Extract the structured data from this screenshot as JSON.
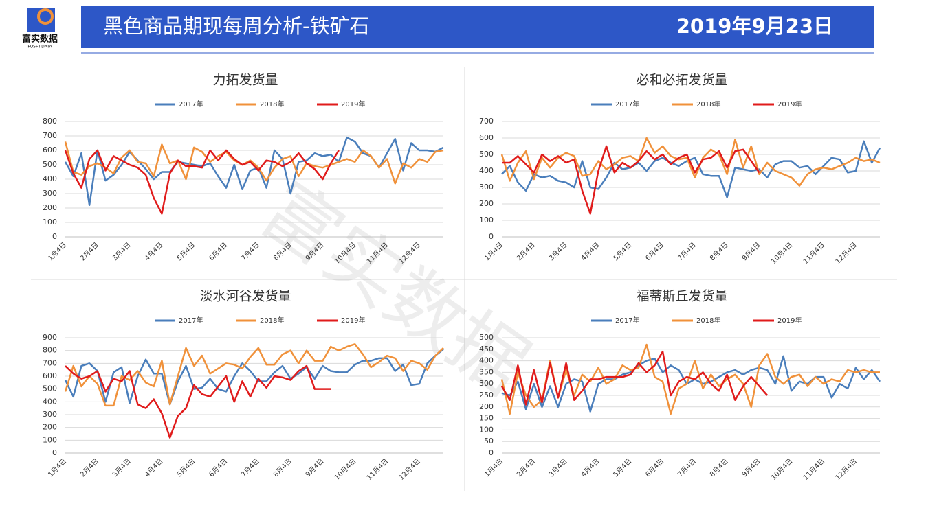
{
  "header": {
    "logo": "富实数据",
    "logo_sub": "FUSHI DATA",
    "title": "黑色商品期现每周分析-铁矿石",
    "date": "2019年9月23日"
  },
  "watermark": "富实数据",
  "chart_data": [
    {
      "type": "line",
      "title": "力拓发货量",
      "categories": [
        "1月4日",
        null,
        null,
        null,
        "2月4日",
        null,
        null,
        null,
        "3月4日",
        null,
        null,
        null,
        "4月4日",
        null,
        null,
        null,
        "5月4日",
        null,
        null,
        null,
        "6月4日",
        null,
        null,
        null,
        "7月4日",
        null,
        null,
        null,
        "8月4日",
        null,
        null,
        null,
        "9月4日",
        null,
        null,
        null,
        "10月4日",
        null,
        null,
        null,
        "11月4日",
        null,
        null,
        null,
        "12月4日",
        null,
        null,
        null
      ],
      "ylim": [
        0,
        800
      ],
      "yticks": [
        0,
        100,
        200,
        300,
        400,
        500,
        600,
        700,
        800
      ],
      "grid": true,
      "series": [
        {
          "name": "2017年",
          "color": "#4a7ebb",
          "values": [
            520,
            420,
            580,
            220,
            600,
            390,
            430,
            500,
            590,
            530,
            470,
            400,
            450,
            450,
            520,
            510,
            500,
            490,
            510,
            420,
            340,
            500,
            330,
            460,
            480,
            340,
            600,
            540,
            300,
            520,
            530,
            580,
            560,
            570,
            520,
            690,
            660,
            580,
            560,
            480,
            580,
            680,
            460,
            650,
            600,
            600,
            590,
            620
          ]
        },
        {
          "name": "2018年",
          "color": "#f0913a",
          "values": [
            660,
            450,
            430,
            490,
            510,
            480,
            440,
            550,
            600,
            520,
            510,
            420,
            640,
            510,
            530,
            400,
            620,
            590,
            520,
            560,
            590,
            530,
            500,
            530,
            480,
            390,
            480,
            540,
            560,
            420,
            510,
            490,
            480,
            500,
            520,
            540,
            520,
            600,
            560,
            480,
            540,
            370,
            510,
            480,
            540,
            520,
            590,
            600
          ]
        },
        {
          "name": "2019年",
          "color": "#e01b1b",
          "values": [
            600,
            440,
            340,
            540,
            600,
            460,
            560,
            530,
            500,
            480,
            430,
            270,
            160,
            440,
            530,
            490,
            490,
            480,
            600,
            530,
            600,
            540,
            500,
            520,
            460,
            530,
            520,
            490,
            520,
            580,
            510,
            470,
            400,
            510,
            600,
            null,
            null,
            null,
            null,
            null,
            null,
            null,
            null,
            null,
            null,
            null,
            null,
            null
          ]
        }
      ]
    },
    {
      "type": "line",
      "title": "必和必拓发货量",
      "categories": [
        "1月4日",
        null,
        null,
        null,
        "2月4日",
        null,
        null,
        null,
        "3月4日",
        null,
        null,
        null,
        "4月4日",
        null,
        null,
        null,
        "5月4日",
        null,
        null,
        null,
        "6月4日",
        null,
        null,
        null,
        "7月4日",
        null,
        null,
        null,
        "8月4日",
        null,
        null,
        null,
        "9月4日",
        null,
        null,
        null,
        "10月4日",
        null,
        null,
        null,
        "11月4日",
        null,
        null,
        null,
        "12月4日",
        null,
        null,
        null
      ],
      "ylim": [
        0,
        700
      ],
      "yticks": [
        0,
        100,
        200,
        300,
        400,
        500,
        600,
        700
      ],
      "grid": true,
      "series": [
        {
          "name": "2017年",
          "color": "#4a7ebb",
          "values": [
            380,
            430,
            330,
            280,
            380,
            360,
            370,
            340,
            330,
            300,
            460,
            300,
            290,
            360,
            450,
            410,
            420,
            450,
            400,
            460,
            480,
            450,
            430,
            460,
            480,
            380,
            370,
            370,
            240,
            420,
            410,
            400,
            410,
            360,
            440,
            460,
            460,
            420,
            430,
            380,
            430,
            480,
            470,
            390,
            400,
            580,
            450,
            540
          ]
        },
        {
          "name": "2018年",
          "color": "#f0913a",
          "values": [
            500,
            340,
            450,
            520,
            350,
            480,
            420,
            480,
            510,
            490,
            370,
            380,
            460,
            410,
            440,
            480,
            490,
            460,
            600,
            510,
            550,
            490,
            470,
            480,
            360,
            480,
            530,
            500,
            380,
            590,
            420,
            550,
            380,
            450,
            400,
            380,
            360,
            310,
            380,
            410,
            420,
            410,
            430,
            450,
            480,
            460,
            470,
            450
          ]
        },
        {
          "name": "2019年",
          "color": "#e01b1b",
          "values": [
            450,
            450,
            490,
            440,
            390,
            500,
            460,
            490,
            450,
            470,
            280,
            140,
            400,
            550,
            390,
            450,
            420,
            460,
            520,
            470,
            500,
            440,
            480,
            500,
            390,
            470,
            480,
            520,
            420,
            520,
            530,
            460,
            390,
            null,
            null,
            null,
            null,
            null,
            null,
            null,
            null,
            null,
            null,
            null,
            null,
            null,
            null,
            null
          ]
        }
      ]
    },
    {
      "type": "line",
      "title": "淡水河谷发货量",
      "categories": [
        "1月4日",
        null,
        null,
        null,
        "2月4日",
        null,
        null,
        null,
        "3月4日",
        null,
        null,
        null,
        "4月4日",
        null,
        null,
        null,
        "5月4日",
        null,
        null,
        null,
        "6月4日",
        null,
        null,
        null,
        "7月4日",
        null,
        null,
        null,
        "8月4日",
        null,
        null,
        null,
        "9月4日",
        null,
        null,
        null,
        "10月4日",
        null,
        null,
        null,
        "11月4日",
        null,
        null,
        null,
        "12月4日",
        null,
        null,
        null
      ],
      "ylim": [
        0,
        900
      ],
      "yticks": [
        0,
        100,
        200,
        300,
        400,
        500,
        600,
        700,
        800,
        900
      ],
      "grid": true,
      "series": [
        {
          "name": "2017年",
          "color": "#4a7ebb",
          "values": [
            570,
            440,
            680,
            700,
            640,
            400,
            630,
            670,
            390,
            600,
            730,
            620,
            620,
            380,
            560,
            680,
            500,
            510,
            580,
            500,
            480,
            600,
            700,
            640,
            560,
            560,
            630,
            680,
            580,
            620,
            670,
            580,
            680,
            640,
            630,
            630,
            690,
            720,
            720,
            740,
            740,
            640,
            690,
            530,
            540,
            700,
            760,
            810
          ]
        },
        {
          "name": "2018年",
          "color": "#f0913a",
          "values": [
            480,
            680,
            520,
            600,
            540,
            370,
            370,
            600,
            570,
            640,
            550,
            520,
            720,
            380,
            600,
            820,
            680,
            760,
            620,
            660,
            700,
            690,
            660,
            750,
            820,
            690,
            690,
            770,
            800,
            700,
            800,
            720,
            720,
            830,
            800,
            830,
            850,
            770,
            670,
            710,
            760,
            740,
            640,
            720,
            700,
            650,
            760,
            820
          ]
        },
        {
          "name": "2019年",
          "color": "#e01b1b",
          "values": [
            680,
            620,
            580,
            600,
            640,
            480,
            580,
            560,
            640,
            380,
            350,
            420,
            310,
            120,
            290,
            350,
            530,
            460,
            440,
            520,
            600,
            400,
            560,
            440,
            580,
            510,
            600,
            590,
            570,
            640,
            680,
            500,
            500,
            500,
            null,
            null,
            null,
            null,
            null,
            null,
            null,
            null,
            null,
            null,
            null,
            null,
            null,
            null
          ]
        }
      ]
    },
    {
      "type": "line",
      "title": "福蒂斯丘发货量",
      "categories": [
        "1月4日",
        null,
        null,
        null,
        "2月4日",
        null,
        null,
        null,
        "3月4日",
        null,
        null,
        null,
        "4月4日",
        null,
        null,
        null,
        "5月4日",
        null,
        null,
        null,
        "6月4日",
        null,
        null,
        null,
        "7月4日",
        null,
        null,
        null,
        "8月4日",
        null,
        null,
        null,
        "9月4日",
        null,
        null,
        null,
        "10月4日",
        null,
        null,
        null,
        "11月4日",
        null,
        null,
        null,
        "12月4日",
        null,
        null,
        null
      ],
      "ylim": [
        0,
        500
      ],
      "yticks": [
        0,
        50,
        100,
        150,
        200,
        250,
        300,
        350,
        400,
        450,
        500
      ],
      "grid": true,
      "series": [
        {
          "name": "2017年",
          "color": "#4a7ebb",
          "values": [
            260,
            250,
            310,
            190,
            300,
            200,
            290,
            200,
            300,
            320,
            310,
            180,
            300,
            320,
            320,
            340,
            350,
            380,
            400,
            410,
            350,
            380,
            360,
            300,
            320,
            300,
            310,
            330,
            350,
            360,
            340,
            360,
            370,
            360,
            300,
            420,
            270,
            310,
            300,
            330,
            330,
            240,
            300,
            280,
            370,
            320,
            360,
            310
          ]
        },
        {
          "name": "2018年",
          "color": "#f0913a",
          "values": [
            320,
            170,
            350,
            250,
            200,
            230,
            400,
            240,
            360,
            250,
            340,
            310,
            370,
            300,
            320,
            380,
            360,
            370,
            470,
            330,
            310,
            170,
            280,
            300,
            400,
            280,
            340,
            290,
            320,
            340,
            300,
            200,
            380,
            430,
            330,
            300,
            330,
            340,
            290,
            330,
            300,
            320,
            310,
            360,
            350,
            360,
            350,
            350
          ]
        },
        {
          "name": "2019年",
          "color": "#e01b1b",
          "values": [
            290,
            230,
            380,
            210,
            360,
            220,
            390,
            240,
            390,
            230,
            270,
            320,
            320,
            330,
            330,
            330,
            340,
            390,
            350,
            380,
            440,
            250,
            310,
            330,
            320,
            350,
            300,
            270,
            340,
            230,
            290,
            330,
            290,
            250,
            null,
            null,
            null,
            null,
            null,
            null,
            null,
            null,
            null,
            null,
            null,
            null,
            null,
            null
          ]
        }
      ]
    }
  ]
}
